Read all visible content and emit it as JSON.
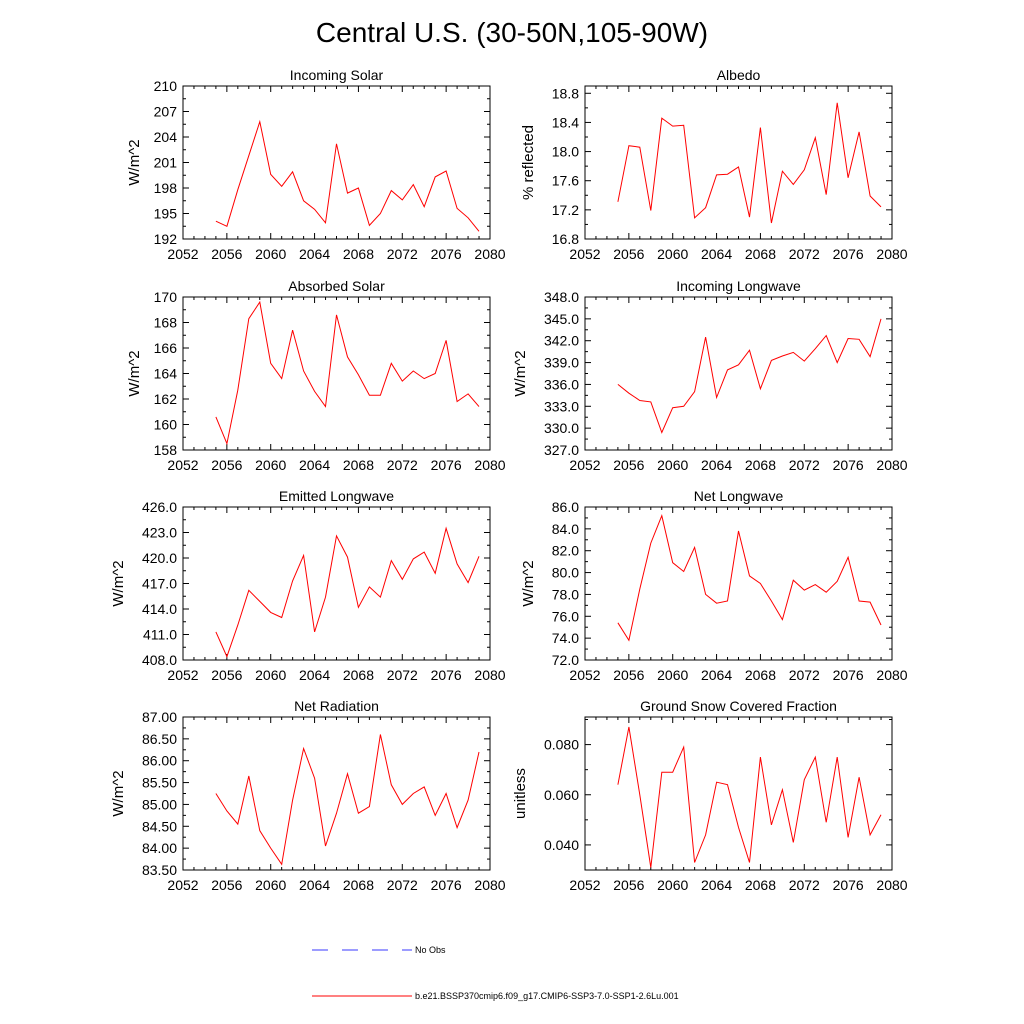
{
  "title": "Central U.S. (30-50N,105-90W)",
  "colors": {
    "series": "#ff0000",
    "no_obs": "#3a3aff",
    "axes": "#000000"
  },
  "legend": [
    {
      "label": "No Obs",
      "style": "dashed",
      "color": "#3a3aff"
    },
    {
      "label": "b.e21.BSSP370cmip6.f09_g17.CMIP6-SSP3-7.0-SSP1-2.6Lu.001",
      "style": "solid",
      "color": "#ff0000"
    }
  ],
  "chart_data": [
    {
      "type": "line",
      "title": "Incoming Solar",
      "ylabel": "W/m^2",
      "xlim": [
        2052,
        2080
      ],
      "ylim": [
        192,
        210
      ],
      "xticks": [
        "2052",
        "2056",
        "2060",
        "2064",
        "2068",
        "2072",
        "2076",
        "2080"
      ],
      "yticks": [
        "192",
        "195",
        "198",
        "201",
        "204",
        "207",
        "210"
      ],
      "x": [
        2055,
        2056,
        2057,
        2058,
        2059,
        2060,
        2061,
        2062,
        2063,
        2064,
        2065,
        2066,
        2067,
        2068,
        2069,
        2070,
        2071,
        2072,
        2073,
        2074,
        2075,
        2076,
        2077,
        2078,
        2079
      ],
      "series": [
        {
          "name": "b.e21.BSSP370cmip6.f09_g17.CMIP6-SSP3-7.0-SSP1-2.6Lu.001",
          "values": [
            194.1,
            193.5,
            197.8,
            201.8,
            205.8,
            199.6,
            198.2,
            199.9,
            196.5,
            195.5,
            193.9,
            203.2,
            197.4,
            198.0,
            193.6,
            195.0,
            197.7,
            196.6,
            198.4,
            195.8,
            199.3,
            200.0,
            195.6,
            194.5,
            192.9
          ]
        }
      ]
    },
    {
      "type": "line",
      "title": "Albedo",
      "ylabel": "% reflected",
      "xlim": [
        2052,
        2080
      ],
      "ylim": [
        16.8,
        18.9
      ],
      "xticks": [
        "2052",
        "2056",
        "2060",
        "2064",
        "2068",
        "2072",
        "2076",
        "2080"
      ],
      "yticks": [
        "16.8",
        "17.2",
        "17.6",
        "18.0",
        "18.4",
        "18.8"
      ],
      "x": [
        2055,
        2056,
        2057,
        2058,
        2059,
        2060,
        2061,
        2062,
        2063,
        2064,
        2065,
        2066,
        2067,
        2068,
        2069,
        2070,
        2071,
        2072,
        2073,
        2074,
        2075,
        2076,
        2077,
        2078,
        2079
      ],
      "series": [
        {
          "name": "b.e21.BSSP370cmip6.f09_g17.CMIP6-SSP3-7.0-SSP1-2.6Lu.001",
          "values": [
            17.31,
            18.08,
            18.06,
            17.19,
            18.46,
            18.35,
            18.36,
            17.09,
            17.23,
            17.68,
            17.69,
            17.79,
            17.1,
            18.33,
            17.02,
            17.73,
            17.55,
            17.75,
            18.19,
            17.41,
            18.67,
            17.64,
            18.27,
            17.39,
            17.24
          ]
        }
      ]
    },
    {
      "type": "line",
      "title": "Absorbed Solar",
      "ylabel": "W/m^2",
      "xlim": [
        2052,
        2080
      ],
      "ylim": [
        158,
        170
      ],
      "xticks": [
        "2052",
        "2056",
        "2060",
        "2064",
        "2068",
        "2072",
        "2076",
        "2080"
      ],
      "yticks": [
        "158",
        "160",
        "162",
        "164",
        "166",
        "168",
        "170"
      ],
      "x": [
        2055,
        2056,
        2057,
        2058,
        2059,
        2060,
        2061,
        2062,
        2063,
        2064,
        2065,
        2066,
        2067,
        2068,
        2069,
        2070,
        2071,
        2072,
        2073,
        2074,
        2075,
        2076,
        2077,
        2078,
        2079
      ],
      "series": [
        {
          "name": "b.e21.BSSP370cmip6.f09_g17.CMIP6-SSP3-7.0-SSP1-2.6Lu.001",
          "values": [
            160.6,
            158.5,
            162.7,
            168.3,
            169.6,
            164.8,
            163.6,
            167.4,
            164.2,
            162.6,
            161.4,
            168.6,
            165.3,
            163.9,
            162.3,
            162.3,
            164.8,
            163.4,
            164.2,
            163.6,
            164.0,
            166.6,
            161.8,
            162.4,
            161.4
          ]
        }
      ]
    },
    {
      "type": "line",
      "title": "Incoming Longwave",
      "ylabel": "W/m^2",
      "xlim": [
        2052,
        2080
      ],
      "ylim": [
        327,
        348
      ],
      "xticks": [
        "2052",
        "2056",
        "2060",
        "2064",
        "2068",
        "2072",
        "2076",
        "2080"
      ],
      "yticks": [
        "327.0",
        "330.0",
        "333.0",
        "336.0",
        "339.0",
        "342.0",
        "345.0",
        "348.0"
      ],
      "x": [
        2055,
        2056,
        2057,
        2058,
        2059,
        2060,
        2061,
        2062,
        2063,
        2064,
        2065,
        2066,
        2067,
        2068,
        2069,
        2070,
        2071,
        2072,
        2073,
        2074,
        2075,
        2076,
        2077,
        2078,
        2079
      ],
      "series": [
        {
          "name": "b.e21.BSSP370cmip6.f09_g17.CMIP6-SSP3-7.0-SSP1-2.6Lu.001",
          "values": [
            336.0,
            334.8,
            333.8,
            333.6,
            329.4,
            332.8,
            333.0,
            335.0,
            342.5,
            334.2,
            338.0,
            338.7,
            340.7,
            335.4,
            339.3,
            339.9,
            340.4,
            339.2,
            340.9,
            342.7,
            339.0,
            342.3,
            342.2,
            339.8,
            345.0
          ]
        }
      ]
    },
    {
      "type": "line",
      "title": "Emitted Longwave",
      "ylabel": "W/m^2",
      "xlim": [
        2052,
        2080
      ],
      "ylim": [
        408,
        426
      ],
      "xticks": [
        "2052",
        "2056",
        "2060",
        "2064",
        "2068",
        "2072",
        "2076",
        "2080"
      ],
      "yticks": [
        "408.0",
        "411.0",
        "414.0",
        "417.0",
        "420.0",
        "423.0",
        "426.0"
      ],
      "x": [
        2055,
        2056,
        2057,
        2058,
        2059,
        2060,
        2061,
        2062,
        2063,
        2064,
        2065,
        2066,
        2067,
        2068,
        2069,
        2070,
        2071,
        2072,
        2073,
        2074,
        2075,
        2076,
        2077,
        2078,
        2079
      ],
      "series": [
        {
          "name": "b.e21.BSSP370cmip6.f09_g17.CMIP6-SSP3-7.0-SSP1-2.6Lu.001",
          "values": [
            411.3,
            408.4,
            412.1,
            416.2,
            414.9,
            413.6,
            413.0,
            417.3,
            420.3,
            411.3,
            415.4,
            422.6,
            420.1,
            414.2,
            416.6,
            415.4,
            419.7,
            417.5,
            419.9,
            420.7,
            418.2,
            423.5,
            419.3,
            417.1,
            420.2
          ]
        }
      ]
    },
    {
      "type": "line",
      "title": "Net Longwave",
      "ylabel": "W/m^2",
      "xlim": [
        2052,
        2080
      ],
      "ylim": [
        72,
        86
      ],
      "xticks": [
        "2052",
        "2056",
        "2060",
        "2064",
        "2068",
        "2072",
        "2076",
        "2080"
      ],
      "yticks": [
        "72.0",
        "74.0",
        "76.0",
        "78.0",
        "80.0",
        "82.0",
        "84.0",
        "86.0"
      ],
      "x": [
        2055,
        2056,
        2057,
        2058,
        2059,
        2060,
        2061,
        2062,
        2063,
        2064,
        2065,
        2066,
        2067,
        2068,
        2069,
        2070,
        2071,
        2072,
        2073,
        2074,
        2075,
        2076,
        2077,
        2078,
        2079
      ],
      "series": [
        {
          "name": "b.e21.BSSP370cmip6.f09_g17.CMIP6-SSP3-7.0-SSP1-2.6Lu.001",
          "values": [
            75.4,
            73.8,
            78.5,
            82.7,
            85.2,
            80.9,
            80.1,
            82.3,
            78.0,
            77.2,
            77.4,
            83.8,
            79.7,
            79.0,
            77.4,
            75.7,
            79.3,
            78.4,
            78.9,
            78.2,
            79.2,
            81.4,
            77.4,
            77.3,
            75.2
          ]
        }
      ]
    },
    {
      "type": "line",
      "title": "Net Radiation",
      "ylabel": "W/m^2",
      "xlim": [
        2052,
        2080
      ],
      "ylim": [
        83.5,
        87.0
      ],
      "xticks": [
        "2052",
        "2056",
        "2060",
        "2064",
        "2068",
        "2072",
        "2076",
        "2080"
      ],
      "yticks": [
        "83.50",
        "84.00",
        "84.50",
        "85.00",
        "85.50",
        "86.00",
        "86.50",
        "87.00"
      ],
      "x": [
        2055,
        2056,
        2057,
        2058,
        2059,
        2060,
        2061,
        2062,
        2063,
        2064,
        2065,
        2066,
        2067,
        2068,
        2069,
        2070,
        2071,
        2072,
        2073,
        2074,
        2075,
        2076,
        2077,
        2078,
        2079
      ],
      "series": [
        {
          "name": "b.e21.BSSP370cmip6.f09_g17.CMIP6-SSP3-7.0-SSP1-2.6Lu.001",
          "values": [
            85.25,
            84.85,
            84.55,
            85.65,
            84.4,
            84.0,
            83.63,
            85.1,
            86.28,
            85.6,
            84.05,
            84.8,
            85.7,
            84.8,
            84.95,
            86.6,
            85.45,
            85.0,
            85.25,
            85.4,
            84.75,
            85.25,
            84.47,
            85.1,
            86.2
          ]
        }
      ]
    },
    {
      "type": "line",
      "title": "Ground Snow Covered Fraction",
      "ylabel": "unitless",
      "xlim": [
        2052,
        2080
      ],
      "ylim": [
        0.03,
        0.091
      ],
      "xticks": [
        "2052",
        "2056",
        "2060",
        "2064",
        "2068",
        "2072",
        "2076",
        "2080"
      ],
      "yticks": [
        "0.040",
        "0.060",
        "0.080"
      ],
      "x": [
        2055,
        2056,
        2057,
        2058,
        2059,
        2060,
        2061,
        2062,
        2063,
        2064,
        2065,
        2066,
        2067,
        2068,
        2069,
        2070,
        2071,
        2072,
        2073,
        2074,
        2075,
        2076,
        2077,
        2078,
        2079
      ],
      "series": [
        {
          "name": "b.e21.BSSP370cmip6.f09_g17.CMIP6-SSP3-7.0-SSP1-2.6Lu.001",
          "values": [
            0.064,
            0.087,
            0.06,
            0.031,
            0.069,
            0.069,
            0.079,
            0.033,
            0.044,
            0.065,
            0.064,
            0.047,
            0.033,
            0.075,
            0.048,
            0.062,
            0.041,
            0.066,
            0.075,
            0.049,
            0.075,
            0.043,
            0.067,
            0.044,
            0.052
          ]
        }
      ]
    }
  ]
}
